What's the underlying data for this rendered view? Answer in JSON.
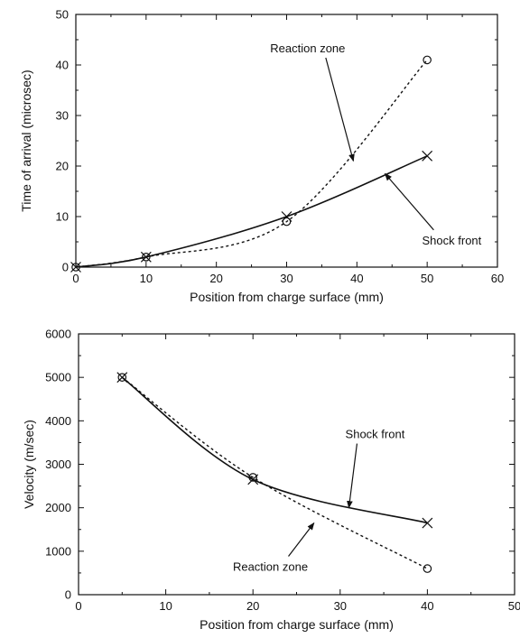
{
  "chart_data": [
    {
      "type": "line",
      "xlabel": "Position from charge surface (mm)",
      "ylabel": "Time of arrival (microsec)",
      "xlim": [
        0,
        60
      ],
      "ylim": [
        0,
        50
      ],
      "xticks": [
        "0",
        "10",
        "20",
        "30",
        "40",
        "50",
        "60"
      ],
      "yticks": [
        "0",
        "10",
        "20",
        "30",
        "40",
        "50"
      ],
      "series": [
        {
          "name": "Shock front",
          "style": "solid",
          "marker": "cross",
          "x": [
            0,
            10,
            30,
            50
          ],
          "y": [
            0,
            2,
            10,
            22
          ]
        },
        {
          "name": "Reaction zone",
          "style": "dashed",
          "marker": "circle",
          "x": [
            0,
            10,
            30,
            50
          ],
          "y": [
            0,
            2,
            9,
            41
          ]
        }
      ],
      "annotations": [
        {
          "text": "Reaction zone",
          "x": 33,
          "y": 42.5,
          "target": [
            39.5,
            21
          ]
        },
        {
          "text": "Shock front",
          "x": 53.5,
          "y": 4.5,
          "target": [
            44,
            18.5
          ]
        }
      ]
    },
    {
      "type": "line",
      "xlabel": "Position from charge surface (mm)",
      "ylabel": "Velocity (m/sec)",
      "xlim": [
        0,
        50
      ],
      "ylim": [
        0,
        6000
      ],
      "xticks": [
        "0",
        "10",
        "20",
        "30",
        "40",
        "50"
      ],
      "yticks": [
        "0",
        "1000",
        "2000",
        "3000",
        "4000",
        "5000",
        "6000"
      ],
      "series": [
        {
          "name": "Shock front",
          "style": "solid",
          "marker": "cross",
          "x": [
            5,
            20,
            40
          ],
          "y": [
            5000,
            2650,
            1650
          ]
        },
        {
          "name": "Reaction zone",
          "style": "dashed",
          "marker": "circle",
          "x": [
            5,
            20,
            40
          ],
          "y": [
            5000,
            2700,
            600
          ]
        }
      ],
      "annotations": [
        {
          "text": "Shock front",
          "x": 34,
          "y": 3600,
          "target": [
            31,
            2000
          ]
        },
        {
          "text": "Reaction zone",
          "x": 22,
          "y": 550,
          "target": [
            27,
            1650
          ]
        }
      ]
    }
  ]
}
